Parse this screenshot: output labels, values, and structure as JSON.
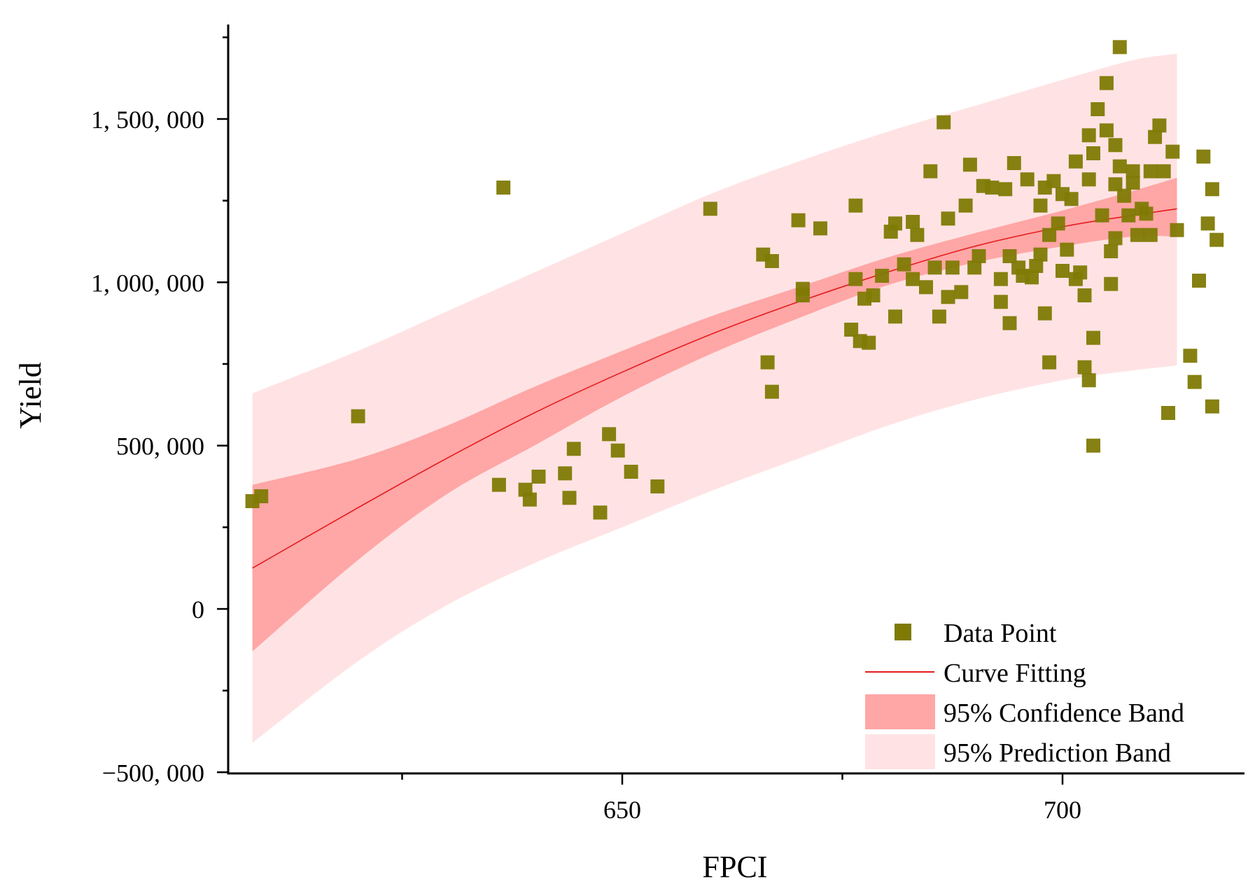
{
  "chart_data": {
    "type": "scatter",
    "title": "",
    "xlabel": "FPCI",
    "ylabel": "Yield",
    "xlim": [
      603,
      721
    ],
    "ylim": [
      -500000,
      1800000
    ],
    "x_ticks": [
      650,
      700
    ],
    "x_tick_labels": [
      "650",
      "700"
    ],
    "y_ticks": [
      -500000,
      0,
      500000,
      1000000,
      1500000
    ],
    "y_tick_labels": [
      "−500, 000",
      "0",
      "500, 000",
      "1, 000, 000",
      "1, 500, 000"
    ],
    "grid": false,
    "legend_position": "bottom-right",
    "legend": [
      {
        "key": "data",
        "label": "Data Point"
      },
      {
        "key": "fit",
        "label": "Curve Fitting"
      },
      {
        "key": "conf",
        "label": "95% Confidence Band"
      },
      {
        "key": "pred",
        "label": "95% Prediction Band"
      }
    ],
    "colors": {
      "data_point": "#7f7a05",
      "fit_line": "#e51c1c",
      "confidence_band": "#ffa6a6",
      "prediction_band": "#ffe3e4"
    },
    "curve_fit": {
      "x": [
        608,
        620,
        630,
        640,
        650,
        660,
        670,
        680,
        690,
        700,
        708,
        713
      ],
      "y": [
        125000,
        310000,
        460000,
        600000,
        725000,
        840000,
        940000,
        1030000,
        1110000,
        1170000,
        1205000,
        1225000
      ]
    },
    "confidence_band": {
      "x": [
        608,
        620,
        630,
        640,
        650,
        660,
        670,
        680,
        690,
        700,
        708,
        713
      ],
      "lower": [
        -130000,
        150000,
        350000,
        500000,
        650000,
        780000,
        890000,
        990000,
        1060000,
        1110000,
        1140000,
        1140000
      ],
      "upper": [
        380000,
        460000,
        560000,
        680000,
        790000,
        895000,
        985000,
        1075000,
        1150000,
        1220000,
        1280000,
        1320000
      ]
    },
    "prediction_band": {
      "x": [
        608,
        620,
        630,
        640,
        650,
        660,
        670,
        680,
        690,
        700,
        708,
        713
      ],
      "lower": [
        -410000,
        -160000,
        10000,
        140000,
        250000,
        360000,
        460000,
        560000,
        640000,
        700000,
        730000,
        745000
      ],
      "upper": [
        660000,
        790000,
        910000,
        1030000,
        1150000,
        1270000,
        1370000,
        1460000,
        1540000,
        1620000,
        1680000,
        1700000
      ]
    },
    "series": [
      {
        "name": "Data Point",
        "points": [
          [
            608,
            330000
          ],
          [
            609,
            345000
          ],
          [
            620,
            590000
          ],
          [
            636,
            380000
          ],
          [
            636.5,
            1290000
          ],
          [
            639,
            365000
          ],
          [
            639.5,
            335000
          ],
          [
            640.5,
            405000
          ],
          [
            643.5,
            415000
          ],
          [
            644,
            340000
          ],
          [
            644.5,
            490000
          ],
          [
            647.5,
            295000
          ],
          [
            648.5,
            535000
          ],
          [
            649.5,
            485000
          ],
          [
            651,
            420000
          ],
          [
            654,
            375000
          ],
          [
            660,
            1225000
          ],
          [
            666,
            1085000
          ],
          [
            666.5,
            755000
          ],
          [
            667,
            665000
          ],
          [
            667,
            1065000
          ],
          [
            670,
            1190000
          ],
          [
            670.5,
            960000
          ],
          [
            670.5,
            980000
          ],
          [
            672.5,
            1165000
          ],
          [
            676,
            855000
          ],
          [
            676.5,
            1235000
          ],
          [
            676.5,
            1010000
          ],
          [
            677,
            820000
          ],
          [
            677.5,
            950000
          ],
          [
            678,
            815000
          ],
          [
            678.5,
            960000
          ],
          [
            679.5,
            1020000
          ],
          [
            680.5,
            1155000
          ],
          [
            681,
            895000
          ],
          [
            681,
            1180000
          ],
          [
            682,
            1055000
          ],
          [
            683,
            1010000
          ],
          [
            683,
            1185000
          ],
          [
            683.5,
            1145000
          ],
          [
            684.5,
            985000
          ],
          [
            685,
            1340000
          ],
          [
            685.5,
            1045000
          ],
          [
            686,
            895000
          ],
          [
            686.5,
            1490000
          ],
          [
            687,
            1195000
          ],
          [
            687,
            955000
          ],
          [
            687.5,
            1045000
          ],
          [
            688.5,
            970000
          ],
          [
            689,
            1235000
          ],
          [
            689.5,
            1360000
          ],
          [
            690,
            1045000
          ],
          [
            690.5,
            1080000
          ],
          [
            691,
            1295000
          ],
          [
            692,
            1290000
          ],
          [
            693,
            1010000
          ],
          [
            693,
            940000
          ],
          [
            693.5,
            1285000
          ],
          [
            694,
            1080000
          ],
          [
            694,
            875000
          ],
          [
            694.5,
            1365000
          ],
          [
            695,
            1045000
          ],
          [
            695.5,
            1020000
          ],
          [
            696,
            1315000
          ],
          [
            696.5,
            1015000
          ],
          [
            697,
            1050000
          ],
          [
            697.5,
            1235000
          ],
          [
            697.5,
            1085000
          ],
          [
            698,
            1290000
          ],
          [
            698,
            905000
          ],
          [
            698.5,
            755000
          ],
          [
            698.5,
            1145000
          ],
          [
            699,
            1310000
          ],
          [
            699.5,
            1180000
          ],
          [
            700,
            1035000
          ],
          [
            700,
            1270000
          ],
          [
            700.5,
            1100000
          ],
          [
            701,
            1255000
          ],
          [
            701.5,
            1370000
          ],
          [
            701.5,
            1010000
          ],
          [
            702,
            1030000
          ],
          [
            702.5,
            960000
          ],
          [
            702.5,
            740000
          ],
          [
            703,
            700000
          ],
          [
            703,
            1315000
          ],
          [
            703,
            1450000
          ],
          [
            703.5,
            830000
          ],
          [
            703.5,
            1395000
          ],
          [
            703.5,
            500000
          ],
          [
            704,
            1530000
          ],
          [
            704.5,
            1205000
          ],
          [
            705,
            1465000
          ],
          [
            705,
            1610000
          ],
          [
            705.5,
            1095000
          ],
          [
            705.5,
            995000
          ],
          [
            706,
            1420000
          ],
          [
            706,
            1300000
          ],
          [
            706,
            1135000
          ],
          [
            706.5,
            1720000
          ],
          [
            706.5,
            1355000
          ],
          [
            707,
            1265000
          ],
          [
            707.5,
            1205000
          ],
          [
            708,
            1340000
          ],
          [
            708,
            1305000
          ],
          [
            708.5,
            1145000
          ],
          [
            709,
            1225000
          ],
          [
            709.5,
            1210000
          ],
          [
            710,
            1340000
          ],
          [
            710,
            1145000
          ],
          [
            710.5,
            1445000
          ],
          [
            711,
            1480000
          ],
          [
            711.5,
            1340000
          ],
          [
            712,
            600000
          ],
          [
            712.5,
            1400000
          ],
          [
            713,
            1160000
          ],
          [
            714.5,
            775000
          ],
          [
            715,
            695000
          ],
          [
            715.5,
            1005000
          ],
          [
            716,
            1385000
          ],
          [
            716.5,
            1180000
          ],
          [
            717,
            620000
          ],
          [
            717,
            1285000
          ],
          [
            717.5,
            1130000
          ]
        ]
      }
    ]
  }
}
